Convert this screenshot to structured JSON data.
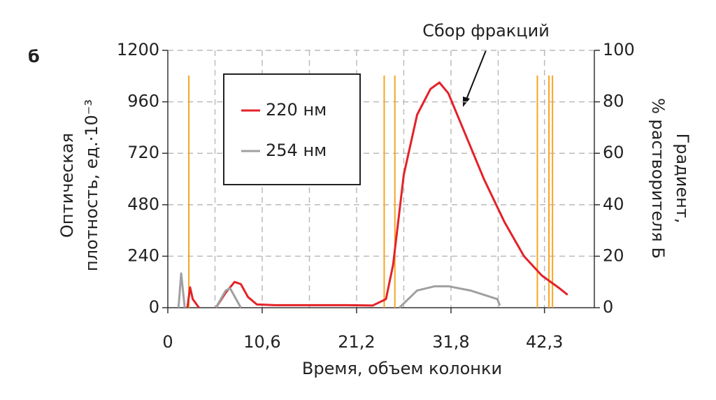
{
  "chart_data": {
    "type": "line",
    "panel_label": "б",
    "xlabel": "Время, объем колонки",
    "ylabel": [
      "Оптическая",
      "плотность, ед.·10⁻³"
    ],
    "y2label": [
      "Градиент,",
      "% растворителя Б"
    ],
    "annotation": "Сбор фракций",
    "xlim": [
      0,
      47.9
    ],
    "xticks": [
      0,
      {
        "value": 10.6,
        "label": "10,6"
      },
      {
        "value": 21.2,
        "label": "21,2"
      },
      {
        "value": 31.8,
        "label": "31,8"
      },
      {
        "value": 42.3,
        "label": "42,3"
      }
    ],
    "xminor_grid": [
      5.3,
      15.9,
      26.5,
      37.1
    ],
    "ylim": [
      0,
      1200
    ],
    "yticks": [
      0,
      240,
      480,
      720,
      960,
      1200
    ],
    "y2lim": [
      0,
      100
    ],
    "y2ticks": [
      0,
      20,
      40,
      60,
      80,
      100
    ],
    "grid": true,
    "fraction_marks": {
      "color": "#f5a623",
      "x": [
        2.36,
        24.3,
        25.5,
        41.5,
        42.8,
        43.2
      ]
    },
    "series": [
      {
        "name": "220 нм",
        "color": "#e32229",
        "x": [
          2.2,
          2.5,
          2.8,
          3.5,
          4.5,
          5.4,
          6.5,
          7.5,
          8.2,
          9.0,
          10.0,
          12,
          20,
          23,
          24.5,
          25.3,
          26.5,
          28,
          29.5,
          30.5,
          31.5,
          33,
          35.5,
          37.8,
          40,
          42,
          44,
          44.9
        ],
        "values": [
          0,
          95,
          40,
          0,
          null,
          0,
          70,
          120,
          110,
          50,
          15,
          12,
          12,
          10,
          40,
          200,
          620,
          900,
          1020,
          1050,
          1000,
          850,
          600,
          400,
          240,
          150,
          90,
          60
        ]
      },
      {
        "name": "254 нм",
        "color": "#a0a0a0",
        "x": [
          1.2,
          1.5,
          1.9,
          3.5,
          5.4,
          6.5,
          7.0,
          8.2,
          17,
          26,
          28,
          30,
          31.5,
          34,
          37,
          37.3
        ],
        "values": [
          0,
          160,
          0,
          null,
          0,
          80,
          90,
          0,
          null,
          0,
          80,
          100,
          100,
          80,
          40,
          10
        ]
      }
    ]
  }
}
